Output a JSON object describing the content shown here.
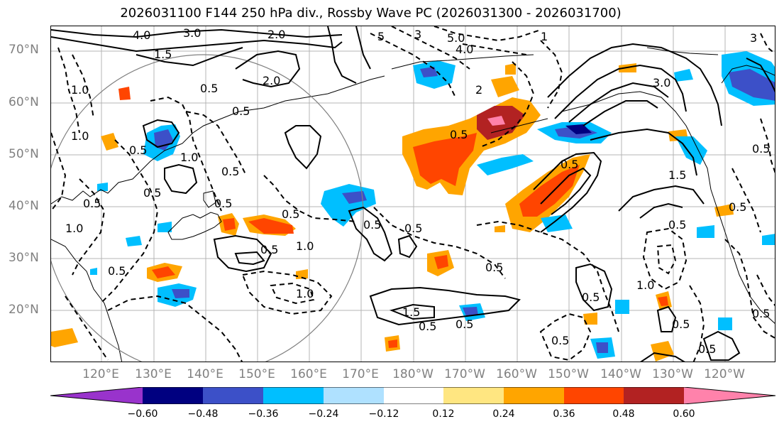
{
  "title": "2026031100 F144 250 hPa div., Rossby Wave PC (2026031300 - 2026031700)",
  "lat_labels": [
    "70°N",
    "60°N",
    "50°N",
    "40°N",
    "30°N",
    "20°N"
  ],
  "lon_labels": [
    "120°E",
    "130°E",
    "140°E",
    "150°E",
    "160°E",
    "170°E",
    "180°W",
    "170°W",
    "160°W",
    "150°W",
    "140°W",
    "130°W",
    "120°W"
  ],
  "colorbar": {
    "colors": [
      "#9933cc",
      "#000080",
      "#3c50c8",
      "#00bfff",
      "#afe1ff",
      "#ffffff",
      "#ffe681",
      "#ffa500",
      "#ff4500",
      "#b22222",
      "#ff82ab"
    ],
    "tick_labels": [
      "−0.60",
      "−0.48",
      "−0.36",
      "−0.24",
      "−0.12",
      "0.12",
      "0.24",
      "0.36",
      "0.48",
      "0.60"
    ]
  },
  "contour_labels": [
    "4.0",
    "3.0",
    "2.0",
    "1.5",
    "2.0",
    "0.5",
    "0.5",
    "1.0",
    "0.5",
    "1.0",
    "0.5",
    "0.5",
    "1.0",
    "0.5",
    "0.5",
    "1.0",
    "0.5",
    "1.0",
    "0.5",
    "0.5",
    "1.0",
    "1.5",
    "0.5",
    "0.5",
    "0.5",
    "5",
    "3",
    "5.0",
    "4.0",
    "2",
    "0.5",
    "0.5",
    "3.0",
    "1.5",
    "0.5",
    "1",
    "0.5",
    "0.5",
    "0.5",
    "1.0",
    "0.5",
    "0.5",
    "0.5",
    "0.5",
    "0.5",
    "0.5",
    "3"
  ],
  "colors": {
    "pos_light": "#ffe681",
    "pos_mid": "#ffa500",
    "pos_strong": "#ff4500",
    "pos_darker": "#b22222",
    "pos_max": "#ff82ab",
    "neg_light": "#afe1ff",
    "neg_mid": "#00bfff",
    "neg_strong": "#3c50c8",
    "neg_max": "#000080"
  }
}
